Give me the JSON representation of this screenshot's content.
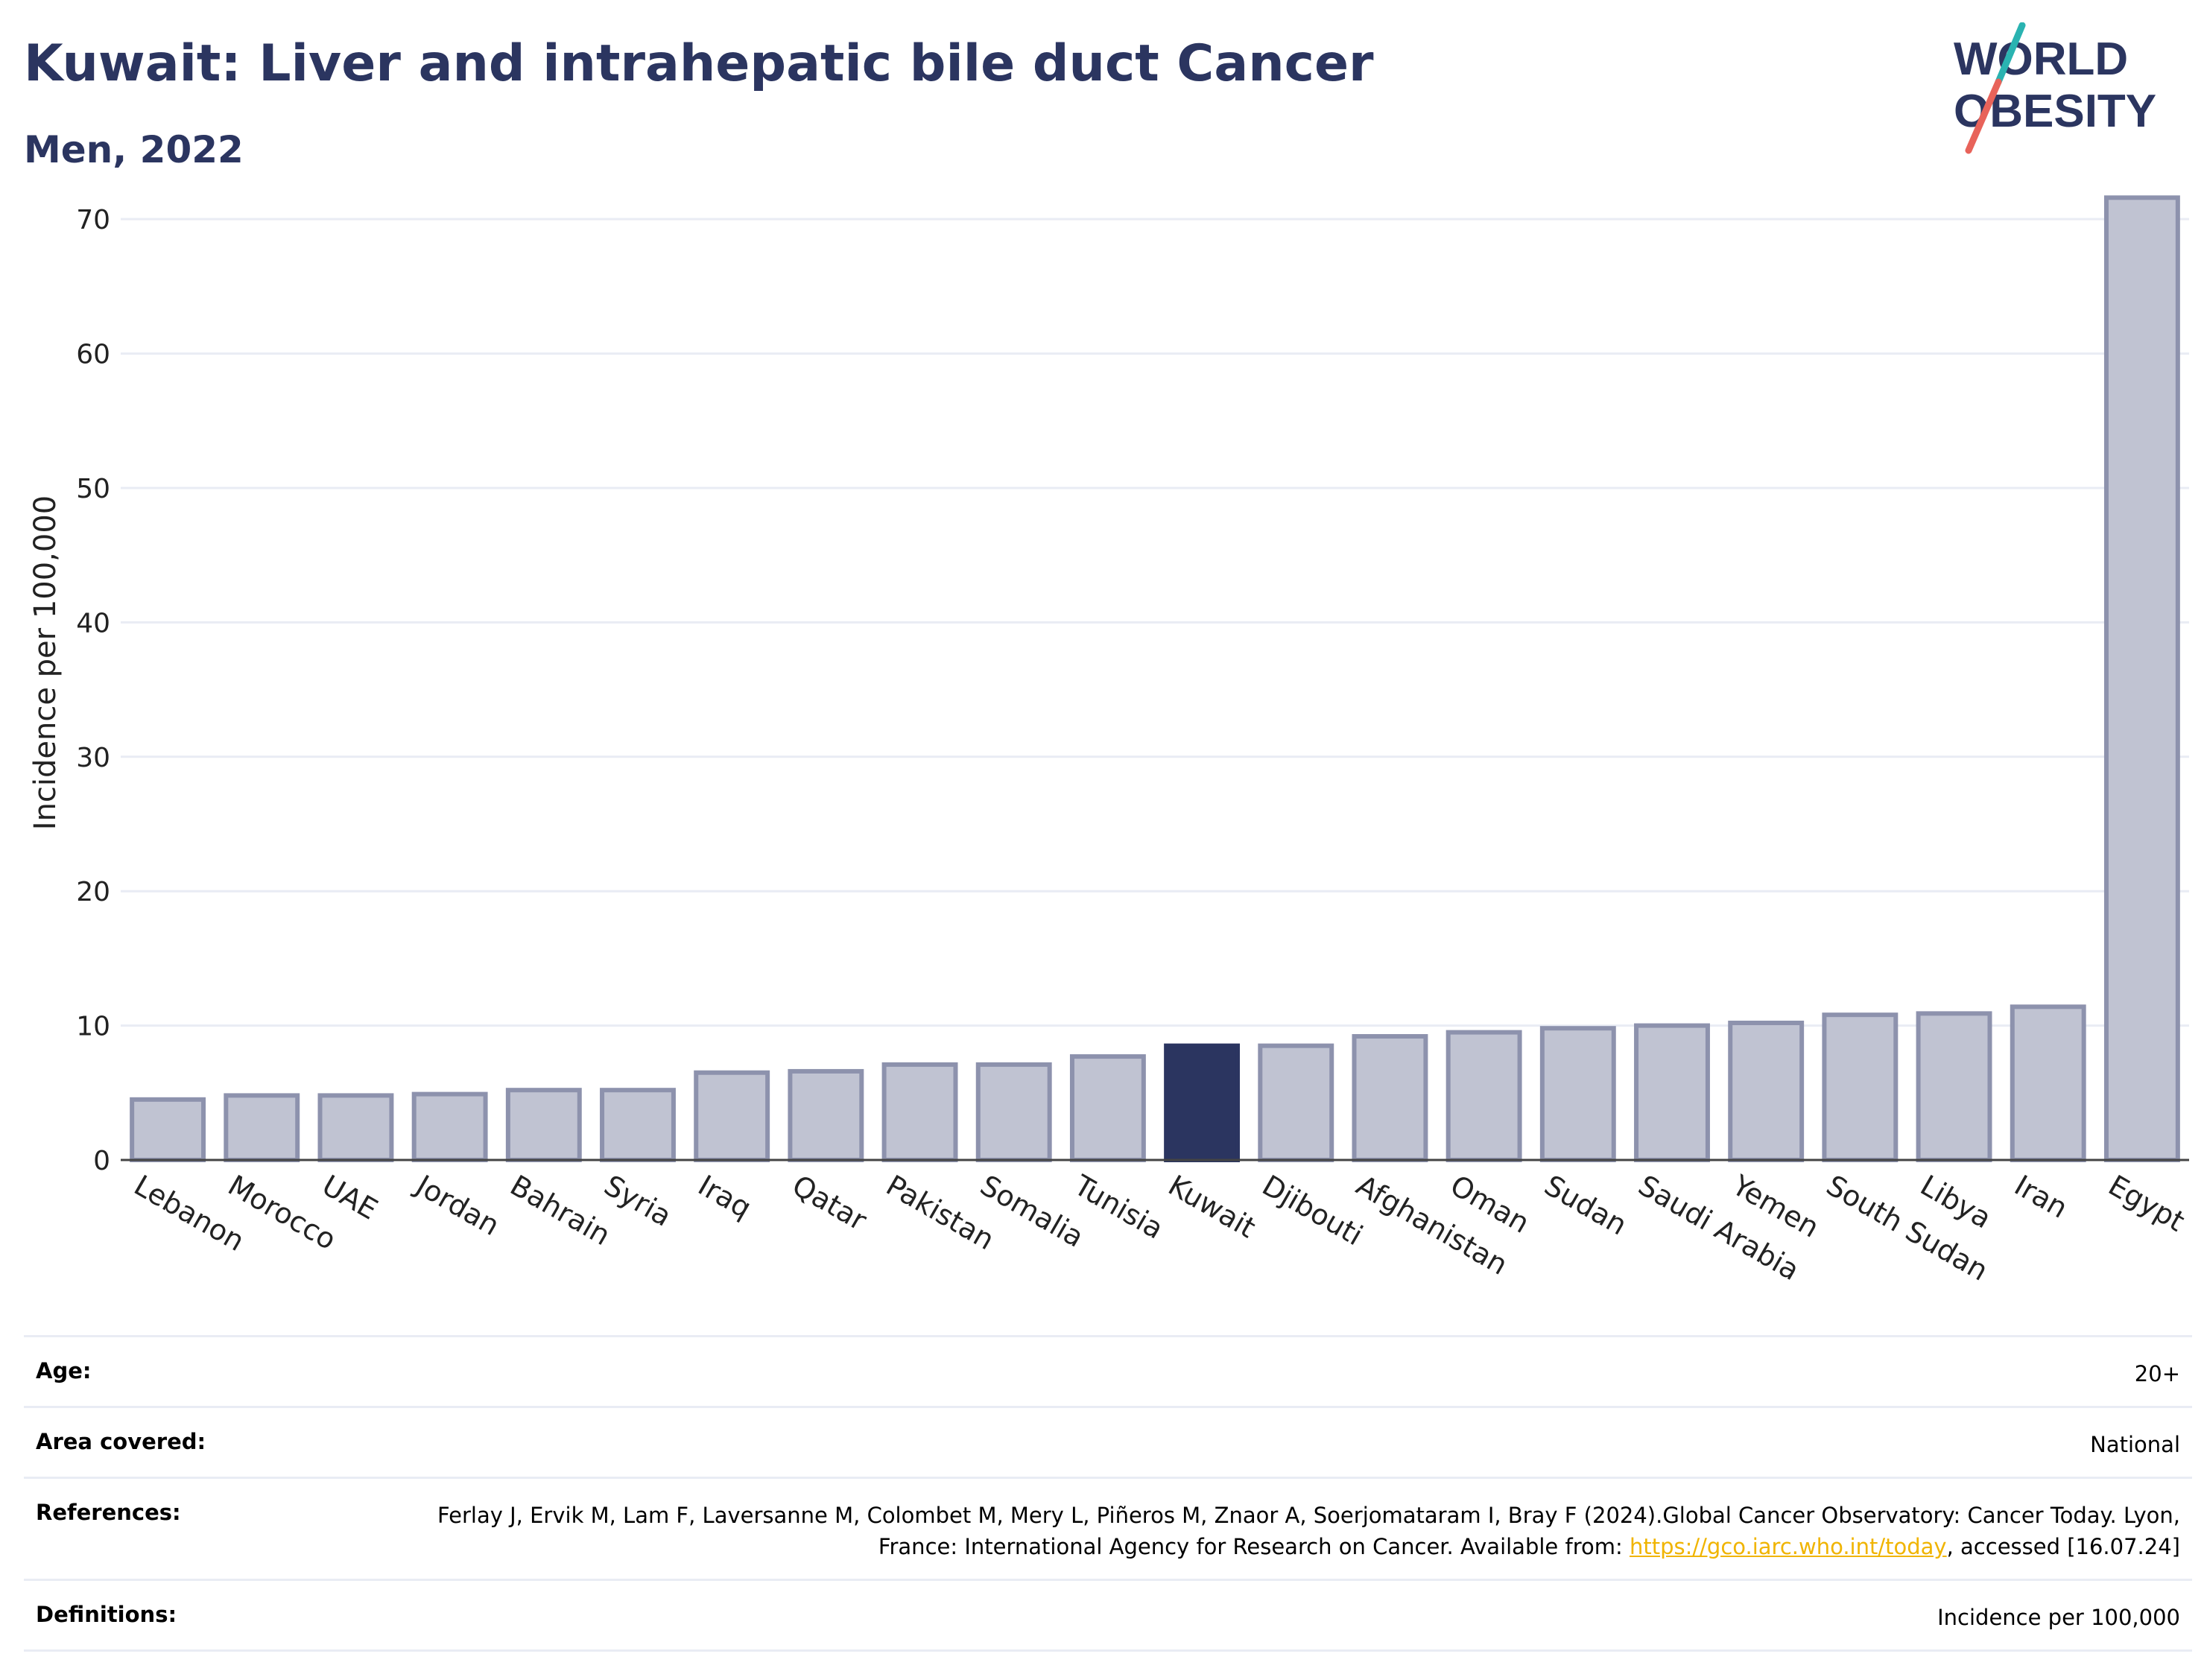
{
  "header": {
    "title": "Kuwait: Liver and intrahepatic bile duct Cancer",
    "subtitle": "Men, 2022"
  },
  "logo": {
    "line1": "WORLD",
    "line2": "OBESITY",
    "text_color": "#2b3560",
    "slash_top_color": "#2ab3b1",
    "slash_bottom_color": "#e8635a"
  },
  "chart_data": {
    "type": "bar",
    "title": "Kuwait: Liver and intrahepatic bile duct Cancer",
    "subtitle": "Men, 2022",
    "xlabel": "",
    "ylabel": "Incidence per 100,000",
    "ylim": [
      0,
      74
    ],
    "yticks": [
      0,
      10,
      20,
      30,
      40,
      50,
      60,
      70
    ],
    "grid": true,
    "categories": [
      "Lebanon",
      "Morocco",
      "UAE",
      "Jordan",
      "Bahrain",
      "Syria",
      "Iraq",
      "Qatar",
      "Pakistan",
      "Somalia",
      "Tunisia",
      "Kuwait",
      "Djibouti",
      "Afghanistan",
      "Oman",
      "Sudan",
      "Saudi Arabia",
      "Yemen",
      "South Sudan",
      "Libya",
      "Iran",
      "Egypt"
    ],
    "values": [
      4.5,
      4.8,
      4.8,
      4.9,
      5.2,
      5.2,
      6.5,
      6.6,
      7.1,
      7.1,
      7.7,
      8.5,
      8.5,
      9.2,
      9.5,
      9.8,
      10.0,
      10.2,
      10.8,
      10.9,
      11.4,
      71.6
    ],
    "highlight": "Kuwait",
    "colors": {
      "bar": "#c0c3d2",
      "bar_border": "#8d92ad",
      "highlight": "#2b3560",
      "grid": "#e9ecf4",
      "axis": "#444444"
    }
  },
  "meta": {
    "age_label": "Age:",
    "age_value": "20+",
    "area_label": "Area covered:",
    "area_value": "National",
    "references_label": "References:",
    "references_text": "Ferlay J, Ervik M, Lam F, Laversanne M, Colombet M, Mery L, Piñeros M, Znaor A, Soerjomataram I, Bray F (2024).Global Cancer Observatory: Cancer Today. Lyon, France: International Agency for Research on Cancer. Available from: ",
    "references_link": "https://gco.iarc.who.int/today",
    "references_suffix": ", accessed [16.07.24]",
    "definitions_label": "Definitions:",
    "definitions_value": "Incidence per 100,000"
  }
}
